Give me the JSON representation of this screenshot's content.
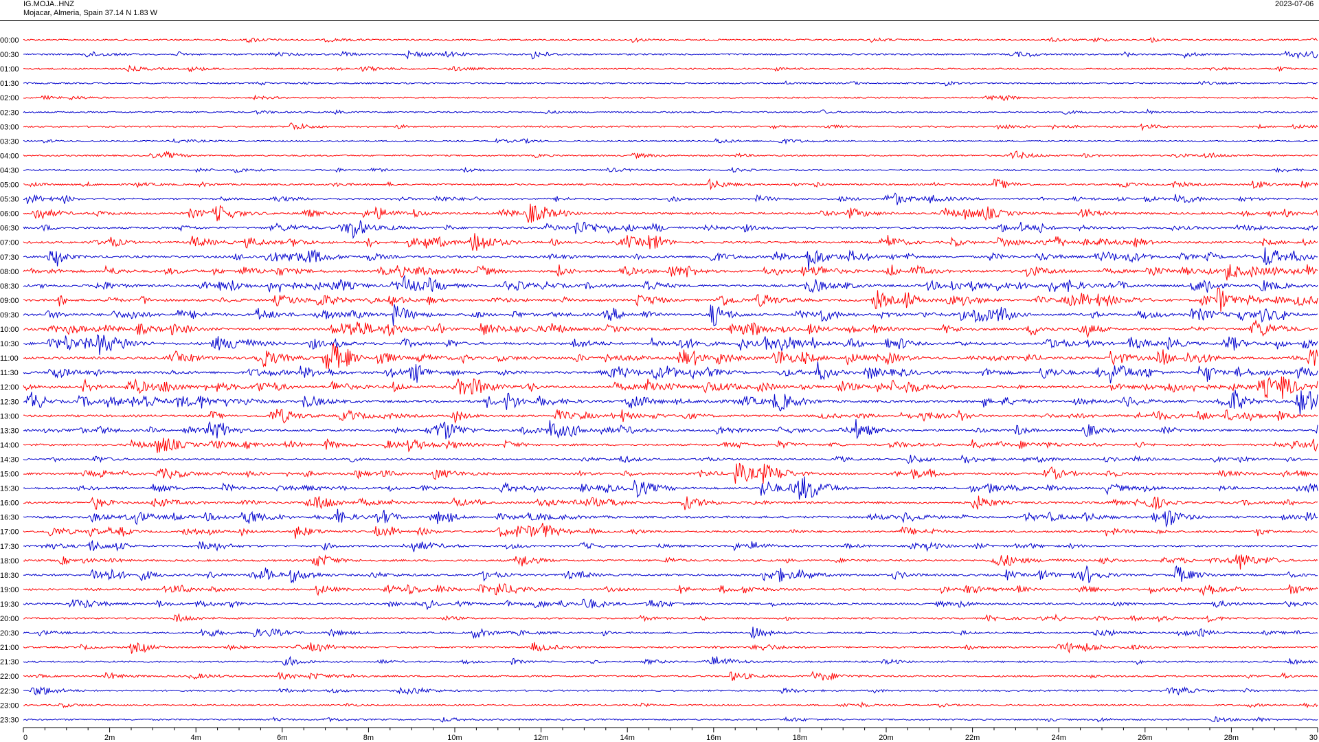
{
  "header": {
    "station": "IG.MOJA..HNZ",
    "location": "Mojacar, Almeria, Spain  37.14 N 1.83 W",
    "date": "2023-07-06"
  },
  "colors": {
    "odd_trace": "#ff0000",
    "even_trace": "#0000cc",
    "axis": "#000000"
  },
  "chart_data": {
    "type": "line",
    "title": "",
    "xlabel": "",
    "ylabel": "",
    "x_ticks": [
      "0",
      "2m",
      "4m",
      "6m",
      "8m",
      "10m",
      "12m",
      "14m",
      "16m",
      "18m",
      "20m",
      "22m",
      "24m",
      "26m",
      "28m",
      "30"
    ],
    "xlim": [
      0,
      30
    ],
    "row_labels": [
      "00:00",
      "00:30",
      "01:00",
      "01:30",
      "02:00",
      "02:30",
      "03:00",
      "03:30",
      "04:00",
      "04:30",
      "05:00",
      "05:30",
      "06:00",
      "06:30",
      "07:00",
      "07:30",
      "08:00",
      "08:30",
      "09:00",
      "09:30",
      "10:00",
      "10:30",
      "11:00",
      "11:30",
      "12:00",
      "12:30",
      "13:00",
      "13:30",
      "14:00",
      "14:30",
      "15:00",
      "15:30",
      "16:00",
      "16:30",
      "17:00",
      "17:30",
      "18:00",
      "18:30",
      "19:00",
      "19:30",
      "20:00",
      "20:30",
      "21:00",
      "21:30",
      "22:00",
      "22:30",
      "23:00",
      "23:30"
    ],
    "row_activity": [
      0.2,
      0.3,
      0.2,
      0.15,
      0.15,
      0.15,
      0.2,
      0.15,
      0.2,
      0.2,
      0.3,
      0.45,
      0.6,
      0.6,
      0.7,
      0.75,
      0.85,
      0.85,
      0.9,
      0.9,
      0.85,
      0.9,
      0.9,
      0.9,
      0.95,
      0.95,
      0.7,
      0.7,
      0.6,
      0.4,
      0.6,
      0.7,
      0.65,
      0.7,
      0.6,
      0.5,
      0.55,
      0.65,
      0.6,
      0.5,
      0.3,
      0.35,
      0.35,
      0.3,
      0.3,
      0.25,
      0.2,
      0.2
    ],
    "events": [
      {
        "row": 1,
        "x": 11.8,
        "a": 1.2
      },
      {
        "row": 1,
        "x": 8.9,
        "a": 1.0
      },
      {
        "row": 6,
        "x": 6.2,
        "a": 1.2
      },
      {
        "row": 8,
        "x": 22.9,
        "a": 1.5
      },
      {
        "row": 10,
        "x": 15.9,
        "a": 1.4
      },
      {
        "row": 10,
        "x": 22.5,
        "a": 1.6
      },
      {
        "row": 10,
        "x": 28.5,
        "a": 1.2
      },
      {
        "row": 11,
        "x": 20.0,
        "a": 1.5
      },
      {
        "row": 11,
        "x": 26.7,
        "a": 1.8
      },
      {
        "row": 11,
        "x": 0.1,
        "a": 1.2
      },
      {
        "row": 12,
        "x": 11.7,
        "a": 2.2
      },
      {
        "row": 12,
        "x": 24.5,
        "a": 1.5
      },
      {
        "row": 12,
        "x": 6.5,
        "a": 1.3
      },
      {
        "row": 13,
        "x": 12.8,
        "a": 2.0
      },
      {
        "row": 13,
        "x": 7.6,
        "a": 1.3
      },
      {
        "row": 13,
        "x": 23.1,
        "a": 1.3
      },
      {
        "row": 14,
        "x": 3.9,
        "a": 1.5
      },
      {
        "row": 14,
        "x": 14.5,
        "a": 1.4
      },
      {
        "row": 14,
        "x": 22.6,
        "a": 1.5
      },
      {
        "row": 15,
        "x": 18.2,
        "a": 2.6
      },
      {
        "row": 15,
        "x": 28.8,
        "a": 2.2
      },
      {
        "row": 15,
        "x": 15.9,
        "a": 1.5
      },
      {
        "row": 16,
        "x": 1.9,
        "a": 1.5
      },
      {
        "row": 16,
        "x": 10.5,
        "a": 1.8
      },
      {
        "row": 16,
        "x": 27.9,
        "a": 1.8
      },
      {
        "row": 17,
        "x": 8.8,
        "a": 2.0
      },
      {
        "row": 17,
        "x": 14.4,
        "a": 2.0
      },
      {
        "row": 17,
        "x": 27.1,
        "a": 1.8
      },
      {
        "row": 18,
        "x": 14.2,
        "a": 1.8
      },
      {
        "row": 18,
        "x": 8.5,
        "a": 1.5
      },
      {
        "row": 18,
        "x": 27.3,
        "a": 1.5
      },
      {
        "row": 19,
        "x": 5.4,
        "a": 1.8
      },
      {
        "row": 19,
        "x": 15.9,
        "a": 2.0
      },
      {
        "row": 19,
        "x": 18.5,
        "a": 1.8
      },
      {
        "row": 20,
        "x": 10.6,
        "a": 1.8
      },
      {
        "row": 20,
        "x": 24.5,
        "a": 2.2
      },
      {
        "row": 20,
        "x": 28.5,
        "a": 1.5
      },
      {
        "row": 21,
        "x": 0.6,
        "a": 1.8
      },
      {
        "row": 21,
        "x": 17.2,
        "a": 1.8
      },
      {
        "row": 21,
        "x": 17.6,
        "a": 1.8
      },
      {
        "row": 21,
        "x": 20.0,
        "a": 1.6
      },
      {
        "row": 22,
        "x": 7.0,
        "a": 2.0
      },
      {
        "row": 22,
        "x": 25.2,
        "a": 2.2
      },
      {
        "row": 22,
        "x": 29.8,
        "a": 2.0
      },
      {
        "row": 22,
        "x": 19.1,
        "a": 1.6
      },
      {
        "row": 23,
        "x": 25.2,
        "a": 2.8
      },
      {
        "row": 23,
        "x": 23.6,
        "a": 1.8
      },
      {
        "row": 23,
        "x": 9.0,
        "a": 1.6
      },
      {
        "row": 24,
        "x": 15.8,
        "a": 1.6
      },
      {
        "row": 24,
        "x": 18.9,
        "a": 1.8
      },
      {
        "row": 24,
        "x": 26.5,
        "a": 1.8
      },
      {
        "row": 24,
        "x": 28.8,
        "a": 1.8
      },
      {
        "row": 25,
        "x": 2.8,
        "a": 1.6
      },
      {
        "row": 25,
        "x": 6.5,
        "a": 1.8
      },
      {
        "row": 25,
        "x": 1.3,
        "a": 1.5
      },
      {
        "row": 26,
        "x": 5.9,
        "a": 1.8
      },
      {
        "row": 26,
        "x": 26.2,
        "a": 1.4
      },
      {
        "row": 27,
        "x": 4.5,
        "a": 1.6
      },
      {
        "row": 27,
        "x": 12.2,
        "a": 1.6
      },
      {
        "row": 27,
        "x": 19.3,
        "a": 1.8
      },
      {
        "row": 28,
        "x": 3.1,
        "a": 1.6
      },
      {
        "row": 28,
        "x": 7.0,
        "a": 1.5
      },
      {
        "row": 28,
        "x": 29.9,
        "a": 1.5
      },
      {
        "row": 29,
        "x": 20.5,
        "a": 1.3
      },
      {
        "row": 30,
        "x": 16.5,
        "a": 3.2
      },
      {
        "row": 30,
        "x": 17.1,
        "a": 2.2
      },
      {
        "row": 30,
        "x": 9.5,
        "a": 1.5
      },
      {
        "row": 30,
        "x": 20.6,
        "a": 1.5
      },
      {
        "row": 31,
        "x": 17.1,
        "a": 2.6
      },
      {
        "row": 31,
        "x": 14.1,
        "a": 1.8
      },
      {
        "row": 31,
        "x": 17.8,
        "a": 1.6
      },
      {
        "row": 32,
        "x": 15.3,
        "a": 2.0
      },
      {
        "row": 32,
        "x": 22.0,
        "a": 1.6
      },
      {
        "row": 32,
        "x": 3.0,
        "a": 1.4
      },
      {
        "row": 33,
        "x": 5.2,
        "a": 1.8
      },
      {
        "row": 33,
        "x": 26.5,
        "a": 1.8
      },
      {
        "row": 33,
        "x": 2.6,
        "a": 1.6
      },
      {
        "row": 34,
        "x": 6.3,
        "a": 1.8
      },
      {
        "row": 34,
        "x": 11.0,
        "a": 1.4
      },
      {
        "row": 34,
        "x": 0.6,
        "a": 1.3
      },
      {
        "row": 35,
        "x": 4.1,
        "a": 2.0
      },
      {
        "row": 35,
        "x": 9.0,
        "a": 1.6
      },
      {
        "row": 36,
        "x": 6.7,
        "a": 1.5
      },
      {
        "row": 36,
        "x": 11.5,
        "a": 1.3
      },
      {
        "row": 37,
        "x": 1.6,
        "a": 1.8
      },
      {
        "row": 37,
        "x": 26.7,
        "a": 1.6
      },
      {
        "row": 38,
        "x": 27.3,
        "a": 1.6
      },
      {
        "row": 38,
        "x": 6.8,
        "a": 1.4
      },
      {
        "row": 38,
        "x": 24.5,
        "a": 1.4
      },
      {
        "row": 39,
        "x": 13.0,
        "a": 1.5
      },
      {
        "row": 39,
        "x": 1.1,
        "a": 1.4
      },
      {
        "row": 40,
        "x": 3.5,
        "a": 1.3
      },
      {
        "row": 41,
        "x": 10.4,
        "a": 1.6
      },
      {
        "row": 41,
        "x": 16.9,
        "a": 1.6
      },
      {
        "row": 41,
        "x": 5.3,
        "a": 1.3
      },
      {
        "row": 42,
        "x": 2.5,
        "a": 1.6
      },
      {
        "row": 42,
        "x": 11.8,
        "a": 1.3
      },
      {
        "row": 43,
        "x": 16.0,
        "a": 1.6
      },
      {
        "row": 44,
        "x": 16.4,
        "a": 1.3
      },
      {
        "row": 44,
        "x": 18.3,
        "a": 1.2
      },
      {
        "row": 45,
        "x": 0.2,
        "a": 1.2
      }
    ]
  }
}
